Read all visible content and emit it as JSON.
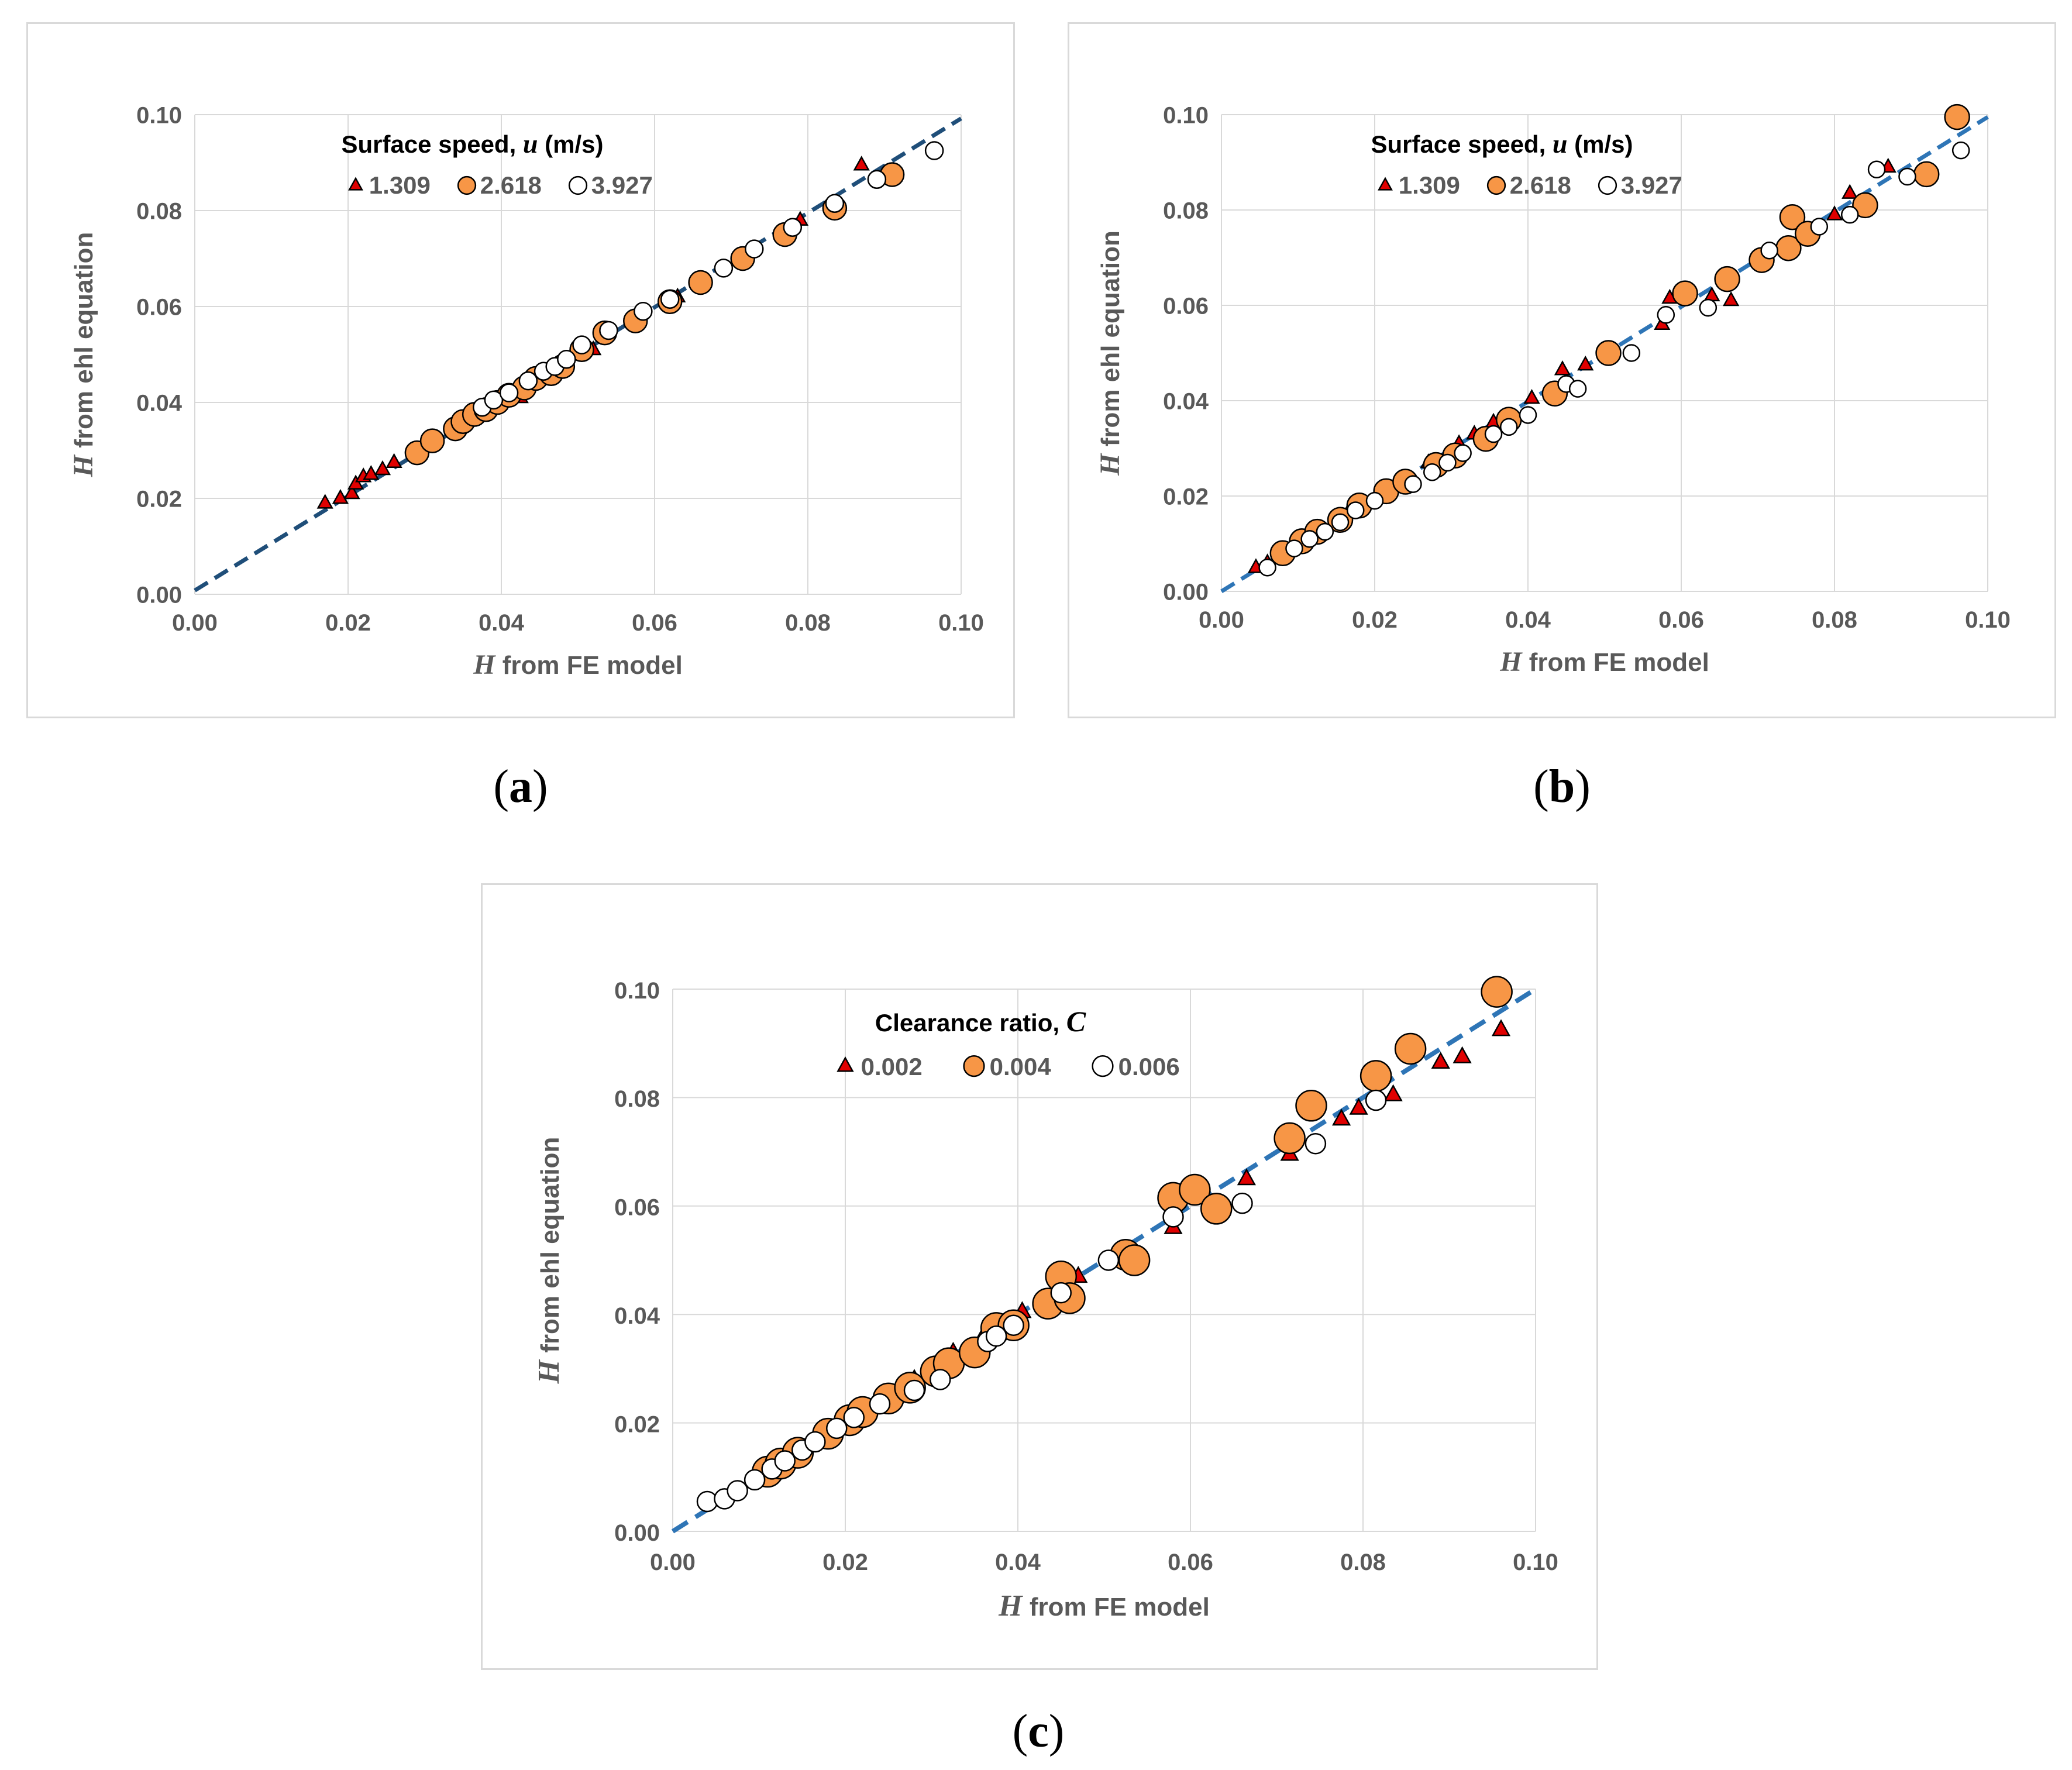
{
  "figure": {
    "captions": [
      "a",
      "b",
      "c"
    ]
  },
  "colors": {
    "triangle": "#e00000",
    "orange": "#f79646",
    "white": "#ffffff",
    "marker_edge": "#000000",
    "line_a": "#1f4e79",
    "line_bc": "#2e75b6",
    "grid": "#d9d9d9",
    "tick_text": "#595959"
  },
  "chart_data": [
    {
      "id": "a",
      "type": "scatter",
      "title": "",
      "xlabel_var": "H",
      "xlabel_rest": " from FE model",
      "ylabel_var": "H",
      "ylabel_rest": " from ehl equation",
      "xlim": [
        0,
        0.1
      ],
      "ylim": [
        0,
        0.1
      ],
      "xticks": [
        "0.00",
        "0.02",
        "0.04",
        "0.06",
        "0.08",
        "0.10"
      ],
      "yticks": [
        "0.00",
        "0.02",
        "0.04",
        "0.06",
        "0.08",
        "0.10"
      ],
      "grid": true,
      "legend_position": "top-left",
      "legend_title_prefix": "Surface speed, ",
      "legend_title_var": "u",
      "legend_title_suffix": " (m/s)",
      "reference_line": {
        "x": [
          0,
          0.1
        ],
        "y": [
          0.0008,
          0.0992
        ],
        "style": "dashed"
      },
      "series": [
        {
          "name": "1.309",
          "marker": "triangle",
          "x": [
            0.017,
            0.019,
            0.0205,
            0.021,
            0.022,
            0.023,
            0.0245,
            0.026,
            0.038,
            0.0395,
            0.0425,
            0.047,
            0.052,
            0.057,
            0.063,
            0.079,
            0.087
          ],
          "y": [
            0.019,
            0.02,
            0.021,
            0.023,
            0.0245,
            0.025,
            0.026,
            0.0275,
            0.038,
            0.0395,
            0.041,
            0.047,
            0.051,
            0.057,
            0.062,
            0.078,
            0.0895
          ]
        },
        {
          "name": "2.618",
          "marker": "circle-orange",
          "x": [
            0.029,
            0.031,
            0.034,
            0.035,
            0.0365,
            0.038,
            0.0395,
            0.041,
            0.043,
            0.0445,
            0.0465,
            0.048,
            0.0505,
            0.0535,
            0.0575,
            0.062,
            0.066,
            0.0715,
            0.077,
            0.0835,
            0.091
          ],
          "y": [
            0.0295,
            0.032,
            0.0345,
            0.036,
            0.0375,
            0.0385,
            0.04,
            0.0415,
            0.043,
            0.045,
            0.046,
            0.0475,
            0.051,
            0.0545,
            0.057,
            0.061,
            0.065,
            0.07,
            0.075,
            0.0805,
            0.0875
          ]
        },
        {
          "name": "3.927",
          "marker": "circle-white",
          "x": [
            0.0375,
            0.039,
            0.041,
            0.0435,
            0.0455,
            0.047,
            0.0485,
            0.0505,
            0.054,
            0.0585,
            0.062,
            0.069,
            0.073,
            0.078,
            0.0835,
            0.089,
            0.0965
          ],
          "y": [
            0.039,
            0.0405,
            0.042,
            0.0445,
            0.0465,
            0.0475,
            0.049,
            0.052,
            0.055,
            0.059,
            0.0615,
            0.068,
            0.072,
            0.0765,
            0.0815,
            0.0865,
            0.0925
          ]
        }
      ]
    },
    {
      "id": "b",
      "type": "scatter",
      "title": "",
      "xlabel_var": "H",
      "xlabel_rest": " from FE model",
      "ylabel_var": "H",
      "ylabel_rest": " from ehl equation",
      "xlim": [
        0,
        0.1
      ],
      "ylim": [
        0,
        0.1
      ],
      "xticks": [
        "0.00",
        "0.02",
        "0.04",
        "0.06",
        "0.08",
        "0.10"
      ],
      "yticks": [
        "0.00",
        "0.02",
        "0.04",
        "0.06",
        "0.08",
        "0.10"
      ],
      "grid": true,
      "legend_position": "top-left",
      "legend_title_prefix": "Surface speed, ",
      "legend_title_var": "u",
      "legend_title_suffix": " (m/s)",
      "reference_line": {
        "x": [
          0,
          0.1
        ],
        "y": [
          0,
          0.0995
        ],
        "style": "dashed"
      },
      "series": [
        {
          "name": "1.309",
          "marker": "triangle",
          "x": [
            0.0045,
            0.006,
            0.008,
            0.0105,
            0.013,
            0.0165,
            0.02,
            0.0235,
            0.027,
            0.031,
            0.033,
            0.0355,
            0.0405,
            0.0445,
            0.0475,
            0.0575,
            0.0585,
            0.064,
            0.0665,
            0.08,
            0.082,
            0.087
          ],
          "y": [
            0.005,
            0.006,
            0.008,
            0.011,
            0.013,
            0.0165,
            0.0195,
            0.0235,
            0.027,
            0.031,
            0.033,
            0.0355,
            0.0405,
            0.0465,
            0.0475,
            0.056,
            0.0615,
            0.062,
            0.061,
            0.079,
            0.0835,
            0.089
          ]
        },
        {
          "name": "2.618",
          "marker": "circle-orange",
          "x": [
            0.008,
            0.0105,
            0.0125,
            0.0155,
            0.018,
            0.0215,
            0.024,
            0.028,
            0.0305,
            0.0345,
            0.0375,
            0.0435,
            0.0505,
            0.0605,
            0.066,
            0.0705,
            0.074,
            0.0745,
            0.0765,
            0.084,
            0.092,
            0.096
          ],
          "y": [
            0.008,
            0.0105,
            0.0125,
            0.015,
            0.018,
            0.021,
            0.023,
            0.0265,
            0.0285,
            0.032,
            0.036,
            0.0415,
            0.05,
            0.0625,
            0.0655,
            0.0695,
            0.072,
            0.0785,
            0.075,
            0.081,
            0.0875,
            0.0995
          ]
        },
        {
          "name": "3.927",
          "marker": "circle-white",
          "x": [
            0.006,
            0.0095,
            0.0115,
            0.0135,
            0.0155,
            0.0175,
            0.02,
            0.025,
            0.0275,
            0.0295,
            0.0315,
            0.0355,
            0.0375,
            0.04,
            0.045,
            0.0465,
            0.0535,
            0.058,
            0.0635,
            0.0715,
            0.078,
            0.082,
            0.0855,
            0.0895,
            0.0965
          ],
          "y": [
            0.005,
            0.009,
            0.011,
            0.0125,
            0.0145,
            0.017,
            0.019,
            0.0225,
            0.025,
            0.027,
            0.029,
            0.033,
            0.0345,
            0.037,
            0.0435,
            0.0425,
            0.05,
            0.058,
            0.0595,
            0.0715,
            0.0765,
            0.079,
            0.0885,
            0.087,
            0.0925
          ]
        }
      ]
    },
    {
      "id": "c",
      "type": "scatter",
      "title": "",
      "xlabel_var": "H",
      "xlabel_rest": " from FE model",
      "ylabel_var": "H",
      "ylabel_rest": " from ehl equation",
      "xlim": [
        0,
        0.1
      ],
      "ylim": [
        0,
        0.1
      ],
      "xticks": [
        "0.00",
        "0.02",
        "0.04",
        "0.06",
        "0.08",
        "0.10"
      ],
      "yticks": [
        "0.00",
        "0.02",
        "0.04",
        "0.06",
        "0.08",
        "0.10"
      ],
      "grid": true,
      "legend_position": "top-left",
      "legend_title_prefix": "Clearance ratio, ",
      "legend_title_var": "C",
      "legend_title_suffix": "",
      "reference_line": {
        "x": [
          0,
          0.1
        ],
        "y": [
          0,
          0.1
        ],
        "style": "dashed"
      },
      "series": [
        {
          "name": "0.002",
          "marker": "triangle",
          "x": [
            0.0125,
            0.0165,
            0.02,
            0.024,
            0.028,
            0.0325,
            0.036,
            0.0405,
            0.047,
            0.058,
            0.0665,
            0.0715,
            0.0775,
            0.0795,
            0.0835,
            0.089,
            0.0915,
            0.096
          ],
          "y": [
            0.0125,
            0.0165,
            0.02,
            0.024,
            0.028,
            0.033,
            0.036,
            0.0405,
            0.047,
            0.056,
            0.065,
            0.0695,
            0.076,
            0.078,
            0.0805,
            0.0865,
            0.0875,
            0.0925
          ]
        },
        {
          "name": "0.004",
          "marker": "circle-orange",
          "x": [
            0.011,
            0.0125,
            0.0145,
            0.018,
            0.0205,
            0.022,
            0.025,
            0.0275,
            0.0305,
            0.032,
            0.035,
            0.0375,
            0.0395,
            0.0435,
            0.045,
            0.046,
            0.0525,
            0.0535,
            0.058,
            0.0605,
            0.063,
            0.0715,
            0.074,
            0.0815,
            0.0855,
            0.0955
          ],
          "y": [
            0.011,
            0.0125,
            0.0145,
            0.018,
            0.0205,
            0.022,
            0.0245,
            0.0265,
            0.0295,
            0.031,
            0.033,
            0.0375,
            0.038,
            0.042,
            0.047,
            0.043,
            0.051,
            0.05,
            0.0615,
            0.063,
            0.0595,
            0.0725,
            0.0785,
            0.084,
            0.089,
            0.0995
          ]
        },
        {
          "name": "0.006",
          "marker": "circle-white",
          "x": [
            0.004,
            0.006,
            0.0075,
            0.0095,
            0.0115,
            0.013,
            0.015,
            0.0165,
            0.019,
            0.021,
            0.024,
            0.028,
            0.031,
            0.0365,
            0.0375,
            0.0395,
            0.045,
            0.0505,
            0.058,
            0.066,
            0.0745,
            0.0815
          ],
          "y": [
            0.0055,
            0.006,
            0.0075,
            0.0095,
            0.0115,
            0.013,
            0.015,
            0.0165,
            0.019,
            0.021,
            0.0235,
            0.026,
            0.028,
            0.035,
            0.036,
            0.038,
            0.044,
            0.05,
            0.058,
            0.0605,
            0.0715,
            0.0795
          ]
        }
      ]
    }
  ]
}
